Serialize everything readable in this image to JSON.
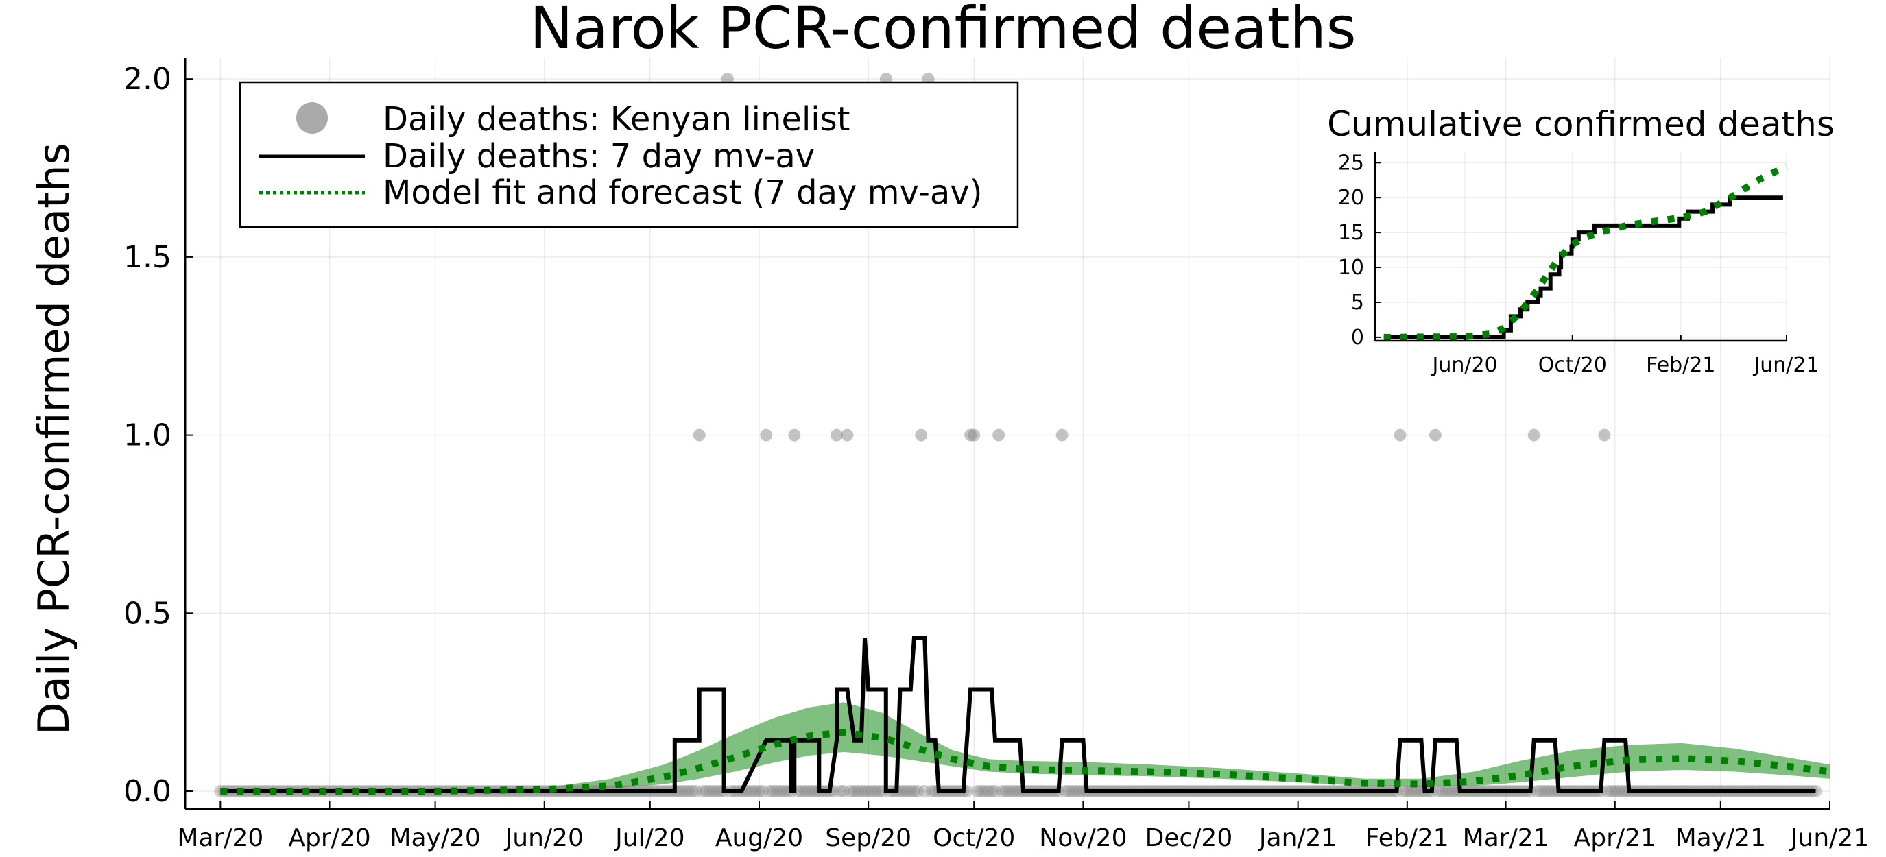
{
  "chart_data": [
    {
      "type": "line",
      "title": "Narok PCR-confirmed deaths",
      "xlabel": "",
      "ylabel": "Daily PCR-confirmed deaths",
      "x_ticks": [
        "Mar/20",
        "Apr/20",
        "May/20",
        "Jun/20",
        "Jul/20",
        "Aug/20",
        "Sep/20",
        "Oct/20",
        "Nov/20",
        "Dec/20",
        "Jan/21",
        "Feb/21",
        "Mar/21",
        "Apr/21",
        "May/21",
        "Jun/21"
      ],
      "y_ticks": [
        "0.0",
        "0.5",
        "1.0",
        "1.5",
        "2.0"
      ],
      "ylim": [
        -0.05,
        2.06
      ],
      "xlim": [
        "2020-02-20",
        "2021-06-01"
      ],
      "grid": true,
      "legend_position": "top-left",
      "legend": [
        {
          "label": "Daily deaths: Kenyan linelist",
          "style": "marker",
          "color": "#aaaaaa"
        },
        {
          "label": "Daily deaths: 7 day mv-av",
          "style": "solid",
          "color": "#000000"
        },
        {
          "label": "Model fit and forecast (7 day mv-av)",
          "style": "dotted",
          "color": "#008000"
        }
      ],
      "series": [
        {
          "name": "Daily deaths: Kenyan linelist",
          "kind": "scatter",
          "date_range": [
            "2020-03-01",
            "2021-05-28"
          ],
          "default_value": 0,
          "points": [
            [
              "2020-07-15",
              1
            ],
            [
              "2020-08-03",
              1
            ],
            [
              "2020-08-11",
              1
            ],
            [
              "2020-08-23",
              1
            ],
            [
              "2020-08-26",
              1
            ],
            [
              "2020-09-16",
              1
            ],
            [
              "2020-09-30",
              1
            ],
            [
              "2020-10-01",
              1
            ],
            [
              "2020-10-08",
              1
            ],
            [
              "2020-10-26",
              1
            ],
            [
              "2021-01-30",
              1
            ],
            [
              "2021-02-09",
              1
            ],
            [
              "2021-03-09",
              1
            ],
            [
              "2021-03-29",
              1
            ],
            [
              "2020-07-23",
              2
            ],
            [
              "2020-09-06",
              2
            ],
            [
              "2020-09-18",
              2
            ]
          ]
        },
        {
          "name": "Daily deaths: 7 day mv-av",
          "kind": "line",
          "color": "#000000",
          "points": [
            [
              "2020-03-01",
              0
            ],
            [
              "2020-07-08",
              0
            ],
            [
              "2020-07-08",
              0.143
            ],
            [
              "2020-07-15",
              0.143
            ],
            [
              "2020-07-15",
              0.286
            ],
            [
              "2020-07-22",
              0.286
            ],
            [
              "2020-07-22",
              0
            ],
            [
              "2020-07-27",
              0
            ],
            [
              "2020-08-03",
              0.143
            ],
            [
              "2020-08-10",
              0.143
            ],
            [
              "2020-08-10",
              0
            ],
            [
              "2020-08-11",
              0
            ],
            [
              "2020-08-11",
              0.143
            ],
            [
              "2020-08-18",
              0.143
            ],
            [
              "2020-08-18",
              0
            ],
            [
              "2020-08-21",
              0
            ],
            [
              "2020-08-23",
              0.143
            ],
            [
              "2020-08-23",
              0.286
            ],
            [
              "2020-08-26",
              0.286
            ],
            [
              "2020-08-28",
              0.143
            ],
            [
              "2020-08-30",
              0.143
            ],
            [
              "2020-08-31",
              0.43
            ],
            [
              "2020-09-01",
              0.286
            ],
            [
              "2020-09-06",
              0.286
            ],
            [
              "2020-09-06",
              0
            ],
            [
              "2020-09-09",
              0
            ],
            [
              "2020-09-10",
              0.286
            ],
            [
              "2020-09-13",
              0.286
            ],
            [
              "2020-09-14",
              0.43
            ],
            [
              "2020-09-17",
              0.43
            ],
            [
              "2020-09-18",
              0.143
            ],
            [
              "2020-09-20",
              0.143
            ],
            [
              "2020-09-21",
              0
            ],
            [
              "2020-09-28",
              0
            ],
            [
              "2020-09-29",
              0.143
            ],
            [
              "2020-09-30",
              0.286
            ],
            [
              "2020-10-06",
              0.286
            ],
            [
              "2020-10-07",
              0.143
            ],
            [
              "2020-10-14",
              0.143
            ],
            [
              "2020-10-15",
              0
            ],
            [
              "2020-10-25",
              0
            ],
            [
              "2020-10-26",
              0.143
            ],
            [
              "2020-11-01",
              0.143
            ],
            [
              "2020-11-02",
              0
            ],
            [
              "2021-01-29",
              0
            ],
            [
              "2021-01-30",
              0.143
            ],
            [
              "2021-02-05",
              0.143
            ],
            [
              "2021-02-06",
              0
            ],
            [
              "2021-02-08",
              0
            ],
            [
              "2021-02-09",
              0.143
            ],
            [
              "2021-02-15",
              0.143
            ],
            [
              "2021-02-16",
              0
            ],
            [
              "2021-03-08",
              0
            ],
            [
              "2021-03-09",
              0.143
            ],
            [
              "2021-03-15",
              0.143
            ],
            [
              "2021-03-16",
              0
            ],
            [
              "2021-03-28",
              0
            ],
            [
              "2021-03-29",
              0.143
            ],
            [
              "2021-04-04",
              0.143
            ],
            [
              "2021-04-05",
              0
            ],
            [
              "2021-05-28",
              0
            ]
          ]
        },
        {
          "name": "Model fit and forecast (7 day mv-av)",
          "kind": "dotted-line",
          "color": "#008000",
          "points": [
            [
              "2020-03-01",
              0
            ],
            [
              "2020-05-01",
              0
            ],
            [
              "2020-06-01",
              0.005
            ],
            [
              "2020-06-20",
              0.015
            ],
            [
              "2020-07-05",
              0.04
            ],
            [
              "2020-07-15",
              0.065
            ],
            [
              "2020-07-25",
              0.095
            ],
            [
              "2020-08-05",
              0.13
            ],
            [
              "2020-08-15",
              0.155
            ],
            [
              "2020-08-25",
              0.165
            ],
            [
              "2020-09-05",
              0.15
            ],
            [
              "2020-09-15",
              0.12
            ],
            [
              "2020-09-25",
              0.09
            ],
            [
              "2020-10-05",
              0.07
            ],
            [
              "2020-10-15",
              0.062
            ],
            [
              "2020-11-01",
              0.058
            ],
            [
              "2020-11-20",
              0.055
            ],
            [
              "2020-12-10",
              0.048
            ],
            [
              "2021-01-01",
              0.035
            ],
            [
              "2021-01-20",
              0.022
            ],
            [
              "2021-02-05",
              0.02
            ],
            [
              "2021-02-20",
              0.028
            ],
            [
              "2021-03-05",
              0.045
            ],
            [
              "2021-03-20",
              0.07
            ],
            [
              "2021-04-05",
              0.088
            ],
            [
              "2021-04-20",
              0.092
            ],
            [
              "2021-05-05",
              0.085
            ],
            [
              "2021-05-20",
              0.07
            ],
            [
              "2021-06-01",
              0.055
            ]
          ],
          "band_upper": [
            [
              "2020-03-01",
              0
            ],
            [
              "2020-05-01",
              0.002
            ],
            [
              "2020-06-01",
              0.01
            ],
            [
              "2020-06-20",
              0.035
            ],
            [
              "2020-07-05",
              0.075
            ],
            [
              "2020-07-15",
              0.115
            ],
            [
              "2020-07-25",
              0.16
            ],
            [
              "2020-08-05",
              0.205
            ],
            [
              "2020-08-15",
              0.235
            ],
            [
              "2020-08-25",
              0.25
            ],
            [
              "2020-09-05",
              0.22
            ],
            [
              "2020-09-15",
              0.165
            ],
            [
              "2020-09-25",
              0.115
            ],
            [
              "2020-10-05",
              0.09
            ],
            [
              "2020-10-15",
              0.085
            ],
            [
              "2020-11-01",
              0.082
            ],
            [
              "2020-11-20",
              0.075
            ],
            [
              "2020-12-10",
              0.065
            ],
            [
              "2021-01-01",
              0.05
            ],
            [
              "2021-01-20",
              0.035
            ],
            [
              "2021-02-05",
              0.035
            ],
            [
              "2021-02-20",
              0.055
            ],
            [
              "2021-03-05",
              0.085
            ],
            [
              "2021-03-20",
              0.115
            ],
            [
              "2021-04-05",
              0.13
            ],
            [
              "2021-04-20",
              0.135
            ],
            [
              "2021-05-05",
              0.12
            ],
            [
              "2021-05-20",
              0.095
            ],
            [
              "2021-06-01",
              0.075
            ]
          ],
          "band_lower": [
            [
              "2020-03-01",
              0
            ],
            [
              "2020-05-01",
              0
            ],
            [
              "2020-06-01",
              0.002
            ],
            [
              "2020-06-20",
              0.007
            ],
            [
              "2020-07-05",
              0.02
            ],
            [
              "2020-07-15",
              0.035
            ],
            [
              "2020-07-25",
              0.055
            ],
            [
              "2020-08-05",
              0.08
            ],
            [
              "2020-08-15",
              0.1
            ],
            [
              "2020-08-25",
              0.11
            ],
            [
              "2020-09-05",
              0.1
            ],
            [
              "2020-09-15",
              0.085
            ],
            [
              "2020-09-25",
              0.07
            ],
            [
              "2020-10-05",
              0.055
            ],
            [
              "2020-10-15",
              0.05
            ],
            [
              "2020-11-01",
              0.045
            ],
            [
              "2020-11-20",
              0.042
            ],
            [
              "2020-12-10",
              0.035
            ],
            [
              "2021-01-01",
              0.025
            ],
            [
              "2021-01-20",
              0.015
            ],
            [
              "2021-02-05",
              0.012
            ],
            [
              "2021-02-20",
              0.015
            ],
            [
              "2021-03-05",
              0.025
            ],
            [
              "2021-03-20",
              0.04
            ],
            [
              "2021-04-05",
              0.055
            ],
            [
              "2021-04-20",
              0.06
            ],
            [
              "2021-05-05",
              0.055
            ],
            [
              "2021-05-20",
              0.045
            ],
            [
              "2021-06-01",
              0.035
            ]
          ]
        }
      ]
    },
    {
      "type": "line",
      "title": "Cumulative confirmed deaths",
      "xlabel": "",
      "ylabel": "",
      "x_ticks": [
        "Jun/20",
        "Oct/20",
        "Feb/21",
        "Jun/21"
      ],
      "y_ticks": [
        "0",
        "5",
        "10",
        "15",
        "20",
        "25"
      ],
      "ylim": [
        -0.5,
        26.5
      ],
      "xlim": [
        "2020-02-20",
        "2021-06-01"
      ],
      "grid": true,
      "series": [
        {
          "name": "",
          "kind": "step",
          "color": "#000000",
          "points": [
            [
              "2020-03-01",
              0
            ],
            [
              "2020-07-15",
              0
            ],
            [
              "2020-07-15",
              1
            ],
            [
              "2020-07-23",
              1
            ],
            [
              "2020-07-23",
              3
            ],
            [
              "2020-08-03",
              3
            ],
            [
              "2020-08-03",
              4
            ],
            [
              "2020-08-11",
              4
            ],
            [
              "2020-08-11",
              5
            ],
            [
              "2020-08-23",
              5
            ],
            [
              "2020-08-23",
              6
            ],
            [
              "2020-08-26",
              6
            ],
            [
              "2020-08-26",
              7
            ],
            [
              "2020-09-06",
              7
            ],
            [
              "2020-09-06",
              9
            ],
            [
              "2020-09-16",
              9
            ],
            [
              "2020-09-16",
              10
            ],
            [
              "2020-09-18",
              10
            ],
            [
              "2020-09-18",
              12
            ],
            [
              "2020-09-30",
              12
            ],
            [
              "2020-09-30",
              13
            ],
            [
              "2020-10-01",
              13
            ],
            [
              "2020-10-01",
              14
            ],
            [
              "2020-10-08",
              14
            ],
            [
              "2020-10-08",
              15
            ],
            [
              "2020-10-26",
              15
            ],
            [
              "2020-10-26",
              16
            ],
            [
              "2021-01-30",
              16
            ],
            [
              "2021-01-30",
              17
            ],
            [
              "2021-02-09",
              17
            ],
            [
              "2021-02-09",
              18
            ],
            [
              "2021-03-09",
              18
            ],
            [
              "2021-03-09",
              19
            ],
            [
              "2021-03-29",
              19
            ],
            [
              "2021-03-29",
              20
            ],
            [
              "2021-05-28",
              20
            ]
          ]
        },
        {
          "name": "",
          "kind": "dotted-line",
          "color": "#008000",
          "points": [
            [
              "2020-03-01",
              0
            ],
            [
              "2020-06-01",
              0.1
            ],
            [
              "2020-07-01",
              0.5
            ],
            [
              "2020-07-15",
              1.3
            ],
            [
              "2020-08-01",
              3.3
            ],
            [
              "2020-08-15",
              5.5
            ],
            [
              "2020-09-01",
              8.7
            ],
            [
              "2020-09-15",
              11.2
            ],
            [
              "2020-10-01",
              13.3
            ],
            [
              "2020-10-15",
              14.3
            ],
            [
              "2020-11-01",
              15.0
            ],
            [
              "2020-12-01",
              16.0
            ],
            [
              "2021-01-01",
              16.6
            ],
            [
              "2021-02-01",
              17.1
            ],
            [
              "2021-03-01",
              18.0
            ],
            [
              "2021-04-01",
              20.2
            ],
            [
              "2021-05-01",
              22.6
            ],
            [
              "2021-06-01",
              24.5
            ]
          ]
        }
      ]
    }
  ]
}
